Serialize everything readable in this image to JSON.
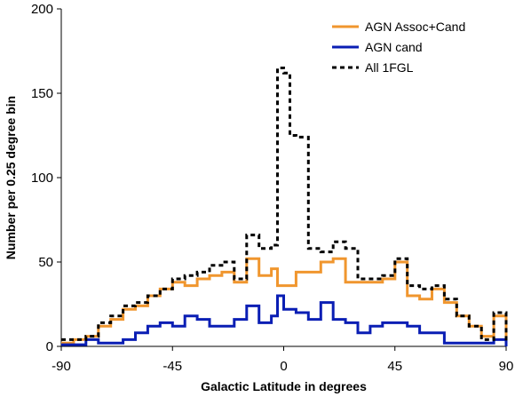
{
  "chart_data": {
    "type": "line",
    "step": true,
    "title": "",
    "xlabel": "Galactic Latitude in degrees",
    "ylabel": "Number per 0.25 degree bin",
    "xlim": [
      -90,
      90
    ],
    "ylim": [
      0,
      200
    ],
    "xticks": [
      -90,
      -45,
      0,
      45,
      90
    ],
    "yticks": [
      0,
      50,
      100,
      150,
      200
    ],
    "grid": false,
    "legend_position": "top-right",
    "x": [
      -90,
      -85,
      -80,
      -75,
      -70,
      -65,
      -60,
      -55,
      -50,
      -45,
      -40,
      -35,
      -30,
      -25,
      -20,
      -15,
      -10,
      -5,
      -2.5,
      0,
      2.5,
      5,
      10,
      15,
      20,
      25,
      30,
      35,
      40,
      45,
      50,
      55,
      60,
      65,
      70,
      75,
      80,
      85,
      90
    ],
    "series": [
      {
        "name": "AGN Assoc+Cand",
        "color": "#f0962e",
        "dash": "solid",
        "values": [
          2,
          4,
          6,
          12,
          16,
          22,
          24,
          30,
          34,
          38,
          36,
          40,
          42,
          44,
          38,
          52,
          42,
          46,
          36,
          36,
          36,
          44,
          44,
          50,
          52,
          38,
          38,
          38,
          40,
          50,
          30,
          28,
          34,
          26,
          18,
          12,
          6,
          18,
          2
        ]
      },
      {
        "name": "AGN cand",
        "color": "#0a1eb4",
        "dash": "solid",
        "values": [
          1,
          1,
          4,
          2,
          2,
          4,
          8,
          12,
          14,
          12,
          18,
          16,
          12,
          12,
          16,
          24,
          14,
          18,
          30,
          22,
          22,
          20,
          16,
          26,
          16,
          14,
          8,
          12,
          14,
          14,
          12,
          8,
          8,
          2,
          2,
          2,
          2,
          4,
          0
        ]
      },
      {
        "name": "All 1FGL",
        "color": "#000000",
        "dash": "dashed",
        "values": [
          4,
          4,
          6,
          14,
          18,
          24,
          26,
          30,
          34,
          40,
          42,
          44,
          48,
          50,
          40,
          66,
          58,
          60,
          165,
          162,
          125,
          124,
          58,
          56,
          62,
          58,
          40,
          40,
          42,
          52,
          36,
          34,
          36,
          28,
          18,
          12,
          4,
          20,
          2
        ]
      }
    ]
  }
}
